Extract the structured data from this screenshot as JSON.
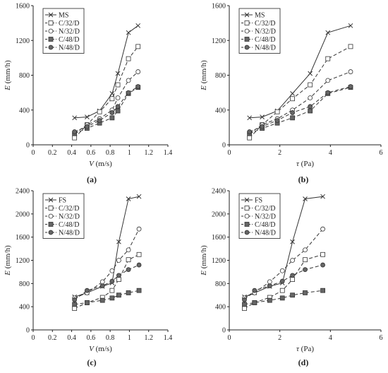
{
  "styles": {
    "axis_color": "#222222",
    "line_color": "#333333",
    "marker_fill_color": "#666666"
  },
  "chart_data": [
    {
      "panel_label": "(a)",
      "type": "line",
      "xlabel_var": "V",
      "xlabel_unit": " (m/s)",
      "ylabel_var": "E",
      "ylabel_unit": " (mm/h)",
      "xlim": [
        0,
        1.4
      ],
      "ylim": [
        0,
        1600
      ],
      "xticks": [
        "0",
        "0.2",
        "0.4",
        "0.6",
        "0.8",
        "1",
        "1.2",
        "1.4"
      ],
      "yticks": [
        "0",
        "400",
        "800",
        "1200",
        "1600"
      ],
      "legend": "top-left",
      "series": [
        {
          "name": "MS",
          "marker": "x",
          "dash": "solid",
          "x": [
            0.43,
            0.56,
            0.69,
            0.82,
            0.88,
            0.99,
            1.09
          ],
          "y": [
            310,
            320,
            390,
            590,
            820,
            1290,
            1370
          ]
        },
        {
          "name": "C/32/D",
          "marker": "square-open",
          "dash": "dashed",
          "x": [
            0.43,
            0.56,
            0.69,
            0.82,
            0.88,
            0.99,
            1.09
          ],
          "y": [
            80,
            230,
            380,
            530,
            690,
            990,
            1130
          ]
        },
        {
          "name": "N/32/D",
          "marker": "circle-open",
          "dash": "dashed",
          "x": [
            0.43,
            0.56,
            0.69,
            0.82,
            0.88,
            0.99,
            1.09
          ],
          "y": [
            130,
            230,
            300,
            400,
            540,
            740,
            840
          ]
        },
        {
          "name": "C/48/D",
          "marker": "square-filled",
          "dash": "dashed",
          "x": [
            0.43,
            0.56,
            0.69,
            0.82,
            0.88,
            0.99,
            1.09
          ],
          "y": [
            130,
            190,
            250,
            310,
            390,
            590,
            660
          ]
        },
        {
          "name": "N/48/D",
          "marker": "circle-filled",
          "dash": "dashed",
          "x": [
            0.43,
            0.56,
            0.69,
            0.82,
            0.88,
            0.99,
            1.09
          ],
          "y": [
            150,
            210,
            280,
            370,
            440,
            600,
            670
          ]
        }
      ]
    },
    {
      "panel_label": "(b)",
      "type": "line",
      "xlabel_var": "τ",
      "xlabel_unit": " (Pa)",
      "ylabel_var": "E",
      "ylabel_unit": " (mm/h)",
      "xlim": [
        0,
        6
      ],
      "ylim": [
        0,
        1600
      ],
      "xticks": [
        "0",
        "2",
        "4",
        "6"
      ],
      "yticks": [
        "0",
        "400",
        "800",
        "1200",
        "1600"
      ],
      "legend": "top-left",
      "series": [
        {
          "name": "MS",
          "marker": "x",
          "dash": "solid",
          "x": [
            0.8,
            1.3,
            1.9,
            2.5,
            3.2,
            3.9,
            4.8
          ],
          "y": [
            310,
            320,
            390,
            590,
            820,
            1290,
            1370
          ]
        },
        {
          "name": "C/32/D",
          "marker": "square-open",
          "dash": "dashed",
          "x": [
            0.8,
            1.3,
            1.9,
            2.5,
            3.2,
            3.9,
            4.8
          ],
          "y": [
            80,
            230,
            380,
            530,
            690,
            990,
            1130
          ]
        },
        {
          "name": "N/32/D",
          "marker": "circle-open",
          "dash": "dashed",
          "x": [
            0.8,
            1.3,
            1.9,
            2.5,
            3.2,
            3.9,
            4.8
          ],
          "y": [
            130,
            230,
            300,
            400,
            540,
            740,
            840
          ]
        },
        {
          "name": "C/48/D",
          "marker": "square-filled",
          "dash": "dashed",
          "x": [
            0.8,
            1.3,
            1.9,
            2.5,
            3.2,
            3.9,
            4.8
          ],
          "y": [
            130,
            190,
            250,
            310,
            390,
            590,
            660
          ]
        },
        {
          "name": "N/48/D",
          "marker": "circle-filled",
          "dash": "dashed",
          "x": [
            0.8,
            1.3,
            1.9,
            2.5,
            3.2,
            3.9,
            4.8
          ],
          "y": [
            150,
            210,
            280,
            370,
            440,
            600,
            670
          ]
        }
      ]
    },
    {
      "panel_label": "(c)",
      "type": "line",
      "xlabel_var": "V",
      "xlabel_unit": " (m/s)",
      "ylabel_var": "E",
      "ylabel_unit": " (mm/h)",
      "xlim": [
        0,
        1.4
      ],
      "ylim": [
        0,
        2400
      ],
      "xticks": [
        "0",
        "0.2",
        "0.4",
        "0.6",
        "0.8",
        "1",
        "1.2",
        "1.4"
      ],
      "yticks": [
        "0",
        "400",
        "800",
        "1200",
        "1600",
        "2000",
        "2400"
      ],
      "legend": "top-left",
      "series": [
        {
          "name": "FS",
          "marker": "x",
          "dash": "solid",
          "x": [
            0.43,
            0.56,
            0.72,
            0.82,
            0.89,
            0.99,
            1.1
          ],
          "y": [
            570,
            640,
            750,
            810,
            1520,
            2260,
            2300
          ]
        },
        {
          "name": "C/32/D",
          "marker": "square-open",
          "dash": "dashed",
          "x": [
            0.43,
            0.56,
            0.72,
            0.82,
            0.89,
            0.99,
            1.1
          ],
          "y": [
            370,
            470,
            560,
            680,
            870,
            1210,
            1300
          ]
        },
        {
          "name": "N/32/D",
          "marker": "circle-open",
          "dash": "dashed",
          "x": [
            0.43,
            0.56,
            0.72,
            0.82,
            0.89,
            0.99,
            1.1
          ],
          "y": [
            550,
            640,
            830,
            1020,
            1200,
            1380,
            1740
          ]
        },
        {
          "name": "C/48/D",
          "marker": "square-filled",
          "dash": "dashed",
          "x": [
            0.43,
            0.56,
            0.72,
            0.82,
            0.89,
            0.99,
            1.1
          ],
          "y": [
            440,
            470,
            510,
            550,
            600,
            640,
            680
          ]
        },
        {
          "name": "N/48/D",
          "marker": "circle-filled",
          "dash": "dashed",
          "x": [
            0.43,
            0.56,
            0.72,
            0.82,
            0.89,
            0.99,
            1.1
          ],
          "y": [
            520,
            680,
            760,
            840,
            940,
            1040,
            1120
          ]
        }
      ]
    },
    {
      "panel_label": "(d)",
      "type": "line",
      "xlabel_var": "τ",
      "xlabel_unit": " (Pa)",
      "ylabel_var": "E",
      "ylabel_unit": " (mm/h)",
      "xlim": [
        0,
        6
      ],
      "ylim": [
        0,
        2400
      ],
      "xticks": [
        "0",
        "2",
        "4",
        "6"
      ],
      "yticks": [
        "0",
        "400",
        "800",
        "1200",
        "1600",
        "2000",
        "2400"
      ],
      "legend": "top-left",
      "series": [
        {
          "name": "FS",
          "marker": "x",
          "dash": "solid",
          "x": [
            0.6,
            1.0,
            1.6,
            2.1,
            2.5,
            3.0,
            3.7
          ],
          "y": [
            570,
            640,
            750,
            810,
            1520,
            2260,
            2300
          ]
        },
        {
          "name": "C/32/D",
          "marker": "square-open",
          "dash": "dashed",
          "x": [
            0.6,
            1.0,
            1.6,
            2.1,
            2.5,
            3.0,
            3.7
          ],
          "y": [
            370,
            470,
            560,
            680,
            870,
            1210,
            1300
          ]
        },
        {
          "name": "N/32/D",
          "marker": "circle-open",
          "dash": "dashed",
          "x": [
            0.6,
            1.0,
            1.6,
            2.1,
            2.5,
            3.0,
            3.7
          ],
          "y": [
            550,
            640,
            830,
            1020,
            1200,
            1380,
            1740
          ]
        },
        {
          "name": "C/48/D",
          "marker": "square-filled",
          "dash": "dashed",
          "x": [
            0.6,
            1.0,
            1.6,
            2.1,
            2.5,
            3.0,
            3.7
          ],
          "y": [
            440,
            470,
            510,
            550,
            600,
            640,
            680
          ]
        },
        {
          "name": "N/48/D",
          "marker": "circle-filled",
          "dash": "dashed",
          "x": [
            0.6,
            1.0,
            1.6,
            2.1,
            2.5,
            3.0,
            3.7
          ],
          "y": [
            520,
            680,
            760,
            840,
            940,
            1040,
            1120
          ]
        }
      ]
    }
  ]
}
